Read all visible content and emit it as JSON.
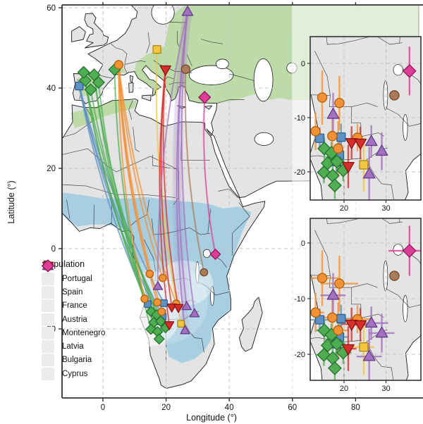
{
  "figure": {
    "xlabel": "Longitude (°)",
    "ylabel": "Latitude (°)",
    "x_ticks": [
      0,
      20,
      40,
      60,
      80
    ],
    "y_ticks": [
      60,
      40,
      20,
      0,
      -20
    ]
  },
  "legend": {
    "title": "Population"
  },
  "colors": {
    "land": "#e4e4e4",
    "ocean": "#ffffff",
    "coast": "#1b1b1b",
    "border": "#2a2a2a",
    "grid": "#c4c4c4",
    "breeding_range": "#b7d9a1",
    "wintering_range": "#a2cce1",
    "axis": "#333333",
    "text": "#111111",
    "wash": "#ffffff"
  },
  "populations": [
    {
      "name": "Portugal",
      "shape": "square",
      "fill": "#5e92c2",
      "stroke": "#2d5e93",
      "breeding": [
        [
          -7.5,
          40.5
        ]
      ],
      "winter": [
        [
          14.2,
          -13.8,
          2.5,
          2
        ],
        [
          19.3,
          -13.6,
          2.5,
          2.5
        ],
        [
          18.9,
          -16.9,
          2,
          3
        ],
        [
          18.2,
          -18.1,
          2,
          2.5
        ]
      ]
    },
    {
      "name": "Spain",
      "shape": "diamond",
      "fill": "#4fae51",
      "stroke": "#277230",
      "breeding": [
        [
          -5.6,
          41.9
        ],
        [
          -2.8,
          43.3
        ],
        [
          -1.4,
          41.4
        ],
        [
          -3.9,
          39.6
        ],
        [
          3.7,
          44.6
        ],
        [
          -6.1,
          43.9
        ]
      ],
      "winter": [
        [
          15.3,
          -15.7,
          2,
          2
        ],
        [
          17.0,
          -16.5,
          2,
          2
        ],
        [
          16.1,
          -18.4,
          1.5,
          2
        ],
        [
          18.3,
          -18.1,
          2,
          2
        ],
        [
          15.2,
          -20.1,
          2,
          2
        ],
        [
          17.3,
          -20.7,
          1.5,
          2.5
        ],
        [
          19.8,
          -19.7,
          2,
          2
        ],
        [
          17.8,
          -22.5,
          1.5,
          2.5
        ]
      ]
    },
    {
      "name": "France",
      "shape": "circle",
      "fill": "#f29135",
      "stroke": "#b05f0a",
      "breeding": [
        [
          5.0,
          45.8
        ]
      ],
      "winter": [
        [
          14.8,
          -6.3,
          4,
          5
        ],
        [
          18.9,
          -7.3,
          4.5,
          5
        ],
        [
          13.2,
          -12.5,
          2,
          3.5
        ],
        [
          17.2,
          -13.4,
          3,
          4
        ],
        [
          18.6,
          -15.7,
          2.5,
          5
        ],
        [
          23.2,
          -13.7,
          3,
          2.5
        ]
      ]
    },
    {
      "name": "Austria",
      "shape": "square",
      "fill": "#f2c63e",
      "stroke": "#a98414",
      "breeding": [
        [
          17.1,
          49.6
        ]
      ],
      "winter": [
        [
          24.7,
          -18.7,
          2.5,
          5
        ]
      ]
    },
    {
      "name": "Montenegro",
      "shape": "triangle-down",
      "fill": "#d52f2c",
      "stroke": "#8c1310",
      "breeding": [
        [
          19.8,
          44.6
        ]
      ],
      "winter": [
        [
          21.8,
          -14.6,
          2.5,
          3
        ],
        [
          23.9,
          -14.7,
          2,
          3
        ],
        [
          21.0,
          -19.0,
          2,
          4
        ]
      ]
    },
    {
      "name": "Latvia",
      "shape": "triangle-up",
      "fill": "#a272bf",
      "stroke": "#653a8c",
      "breeding": [
        [
          26.8,
          59.0
        ]
      ],
      "winter": [
        [
          17.4,
          -9.4,
          3,
          4
        ],
        [
          26.5,
          -14.4,
          4,
          3
        ],
        [
          29.0,
          -16.2,
          3,
          3.5
        ],
        [
          26.0,
          -20.4,
          3,
          5
        ]
      ]
    },
    {
      "name": "Bulgaria",
      "shape": "circle",
      "fill": "#ab7b5c",
      "stroke": "#6e4628",
      "breeding": [
        [
          26.2,
          44.7
        ]
      ],
      "winter": [
        [
          32.0,
          -5.9,
          0.9,
          0.9
        ]
      ]
    },
    {
      "name": "Cyprus",
      "shape": "diamond",
      "fill": "#dc3d96",
      "stroke": "#97135e",
      "breeding": [
        [
          32.2,
          37.7
        ]
      ],
      "winter": [
        [
          35.6,
          -1.4,
          5,
          4.5
        ]
      ]
    }
  ],
  "insets": [
    {
      "id": "top",
      "x_ticks": [
        20,
        30
      ],
      "y_ticks": [
        0,
        -10,
        -20
      ],
      "error_bars": "vertical"
    },
    {
      "id": "bottom",
      "x_ticks": [
        20,
        30
      ],
      "y_ticks": [
        0,
        -10,
        -20
      ],
      "error_bars": "both"
    }
  ]
}
